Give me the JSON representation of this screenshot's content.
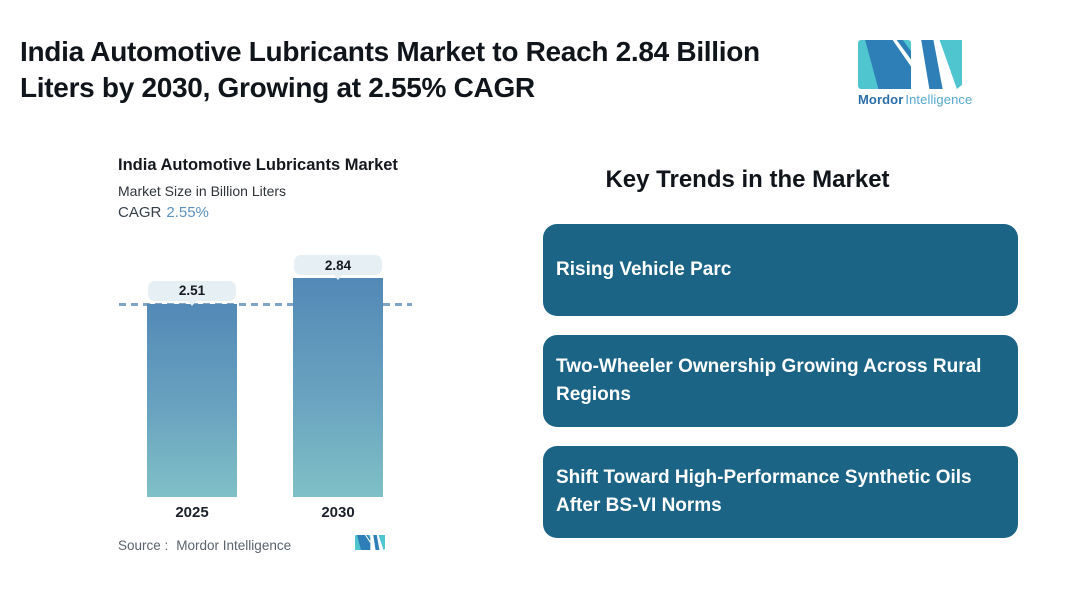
{
  "header": {
    "title_line1": "India Automotive Lubricants Market to Reach 2.84 Billion",
    "title_line2": "Liters by 2030, Growing at 2.55% CAGR",
    "logo": {
      "brand_bold": "Mordor",
      "brand_light": "Intelligence"
    }
  },
  "chart": {
    "title": "India Automotive Lubricants Market",
    "subtitle": "Market Size in Billion Liters",
    "cagr_label": "CAGR",
    "cagr_value": "2.55%",
    "source_label": "Source :",
    "source_value": "Mordor Intelligence"
  },
  "chart_data": {
    "type": "bar",
    "categories": [
      "2025",
      "2030"
    ],
    "values": [
      2.51,
      2.84
    ],
    "value_labels": [
      "2.51",
      "2.84"
    ],
    "title": "India Automotive Lubricants Market",
    "subtitle": "Market Size in Billion Liters",
    "cagr": "2.55%",
    "xlabel": "",
    "ylabel": "Market Size in Billion Liters",
    "ylim": [
      0,
      2.84
    ],
    "reference_line": 2.51,
    "grid": false,
    "legend": false,
    "bar_gradient": [
      "#5289b6",
      "#7fc0c6"
    ],
    "reference_line_color": "#7fa6c8",
    "source": "Source : Mordor Intelligence"
  },
  "trends": {
    "heading": "Key Trends in the Market",
    "items": [
      "Rising Vehicle Parc",
      "Two-Wheeler Ownership Growing Across Rural Regions",
      "Shift Toward High-Performance Synthetic Oils After BS-VI Norms"
    ],
    "box_color": "#1b6486"
  },
  "colors": {
    "background": "#ffffff",
    "title_text": "#10151b",
    "trend_box": "#1b6486",
    "trend_text": "#ffffff",
    "bar_top": "#5289b6",
    "bar_bottom": "#7fc0c6",
    "dashed_line": "#7fa6c8",
    "pill_bg": "#e6eff3",
    "cagr_value": "#5d91c2",
    "logo_teal": "#4ec5cf",
    "logo_blue": "#2e7eb8",
    "source_text": "#5a646e"
  },
  "icons": {
    "brand_mark": "mordor-intelligence-m-mark"
  }
}
